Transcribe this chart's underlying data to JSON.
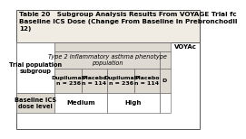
{
  "title_line1": "Table 20   Subgroup Analysis Results From VOYAGE Trial fc",
  "title_line2": "Baseline ICS Dose (Change From Baseline in Prebronchodil",
  "title_line3": "12)",
  "voyager_label": "VOYAc",
  "subheader": "Type 2 inflammatory asthma phenotype\npopulation",
  "col1_label": "Trial population\nsubgroup",
  "col_headers": [
    "Dupilumab\nn = 236",
    "Placebo\nn = 114",
    "Dupilumab\nn = 236",
    "Placebo\nn = 114",
    "D"
  ],
  "row_label": "Baseline ICS\ndose level",
  "row_values": [
    "Medium",
    "High"
  ],
  "bg_color": "#dedad2",
  "white_bg": "#ffffff",
  "border_color": "#555555",
  "title_bg": "#f0ece4",
  "title_fontsize": 5.2,
  "cell_fontsize": 5.0
}
